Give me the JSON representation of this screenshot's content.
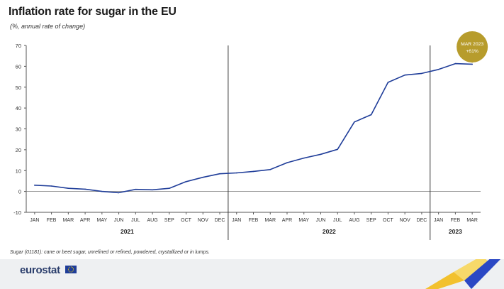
{
  "header": {
    "title": "Inflation rate for sugar in the EU",
    "subtitle": "(%, annual rate of change)"
  },
  "chart_data": {
    "type": "line",
    "title": "Inflation rate for sugar in the EU",
    "subtitle": "(%, annual rate of change)",
    "xlabel": "",
    "ylabel": "",
    "ylim": [
      -10,
      70
    ],
    "yticks": [
      -10,
      0,
      10,
      20,
      30,
      40,
      50,
      60,
      70
    ],
    "grid": false,
    "categories": [
      "JAN",
      "FEB",
      "MAR",
      "APR",
      "MAY",
      "JUN",
      "JUL",
      "AUG",
      "SEP",
      "OCT",
      "NOV",
      "DEC",
      "JAN",
      "FEB",
      "MAR",
      "APR",
      "MAY",
      "JUN",
      "JUL",
      "AUG",
      "SEP",
      "OCT",
      "NOV",
      "DEC",
      "JAN",
      "FEB",
      "MAR"
    ],
    "year_groups": [
      {
        "label": "2021",
        "start": 0,
        "end": 11
      },
      {
        "label": "2022",
        "start": 12,
        "end": 23
      },
      {
        "label": "2023",
        "start": 24,
        "end": 26
      }
    ],
    "series": [
      {
        "color": "#1f3d99",
        "values": [
          3.0,
          2.6,
          1.5,
          1.1,
          0.0,
          -0.6,
          1.0,
          0.8,
          1.5,
          4.7,
          6.8,
          8.5,
          8.9,
          9.6,
          10.5,
          13.8,
          16.0,
          17.8,
          20.2,
          33.3,
          36.8,
          52.3,
          55.8,
          56.6,
          58.5,
          61.3,
          61.0
        ]
      }
    ],
    "annotation": {
      "index": 26,
      "line1": "MAR 2023",
      "line2": "+61%",
      "color": "#b79c2c"
    }
  },
  "footnote": "Sugar (01181): cane or beet sugar, unrefined or refined, powdered, crystallized or in lumps.",
  "footer": {
    "logo": "eurostat"
  },
  "colors": {
    "line": "#1f3d99",
    "axis": "#333333",
    "bubble": "#b79c2c",
    "footer_bg": "#eef0f2",
    "deco_yellow": "#f2c12e",
    "deco_blue": "#2b48c4"
  }
}
